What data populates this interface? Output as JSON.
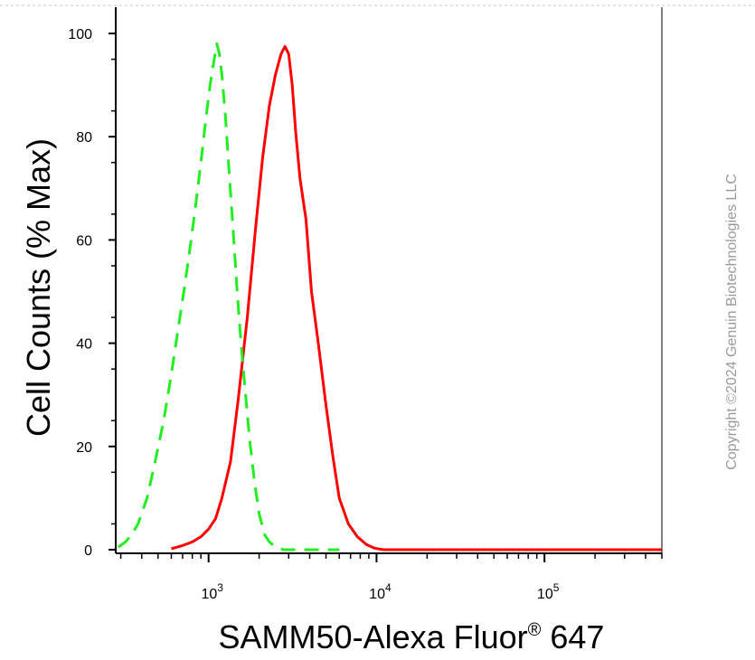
{
  "chart_data": {
    "type": "line",
    "xlabel": "SAMM50-Alexa Fluor",
    "xlabel_superscript": "®",
    "xlabel_suffix": " 647",
    "ylabel": "Cell Counts (% Max)",
    "x_scale": "log",
    "xlim": [
      280,
      500000
    ],
    "ylim": [
      0,
      100
    ],
    "y_ticks": [
      0,
      20,
      40,
      60,
      80,
      100
    ],
    "x_major_ticks": [
      {
        "value": 1000,
        "base": "10",
        "exp": "3"
      },
      {
        "value": 10000,
        "base": "10",
        "exp": "4"
      },
      {
        "value": 100000,
        "base": "10",
        "exp": "5"
      }
    ],
    "grid": false,
    "legend": "none",
    "series": [
      {
        "color": "#ff0000",
        "style": "solid",
        "x": [
          600,
          700,
          800,
          900,
          1000,
          1100,
          1200,
          1350,
          1500,
          1700,
          1900,
          2100,
          2300,
          2500,
          2700,
          2850,
          3000,
          3150,
          3300,
          3500,
          3800,
          4100,
          4500,
          5000,
          5500,
          6000,
          6800,
          7700,
          8700,
          9700,
          11000,
          20000,
          100000,
          500000
        ],
        "y": [
          0.2,
          0.8,
          1.5,
          2.5,
          4,
          6,
          10,
          17,
          29,
          45,
          62,
          76,
          86,
          92,
          96,
          97.5,
          96,
          90,
          81,
          72,
          64,
          50,
          40,
          28,
          18,
          10,
          5,
          2.5,
          1,
          0.3,
          0,
          0,
          0,
          0
        ]
      },
      {
        "color": "#22ee22",
        "style": "dashed",
        "x": [
          290,
          320,
          350,
          380,
          430,
          480,
          540,
          600,
          660,
          720,
          780,
          840,
          900,
          960,
          1020,
          1080,
          1120,
          1160,
          1200,
          1260,
          1320,
          1400,
          1480,
          1560,
          1660,
          1760,
          1880,
          2000,
          2150,
          2300,
          2500,
          2800,
          3200,
          4000,
          6000
        ],
        "y": [
          0.5,
          1.5,
          3,
          5,
          10,
          17,
          25,
          34,
          43,
          51,
          59,
          67,
          75,
          83,
          90,
          95,
          98,
          96,
          92,
          84,
          74,
          62,
          50,
          40,
          30,
          21,
          13,
          7,
          3,
          1.5,
          0.5,
          0,
          0,
          0,
          0
        ]
      }
    ]
  },
  "watermark": "Copyright ©2024 Genuin Biotechnologies LLC"
}
